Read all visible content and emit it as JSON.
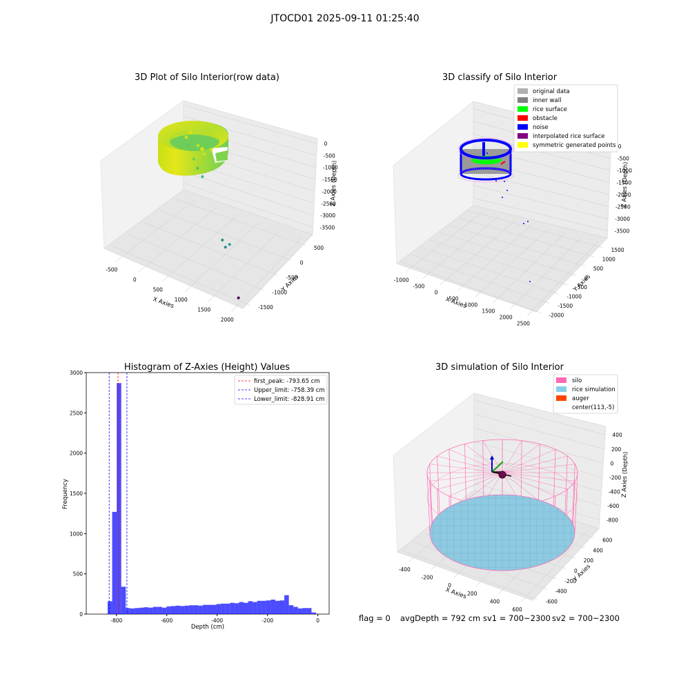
{
  "suptitle": "JTOCD01 2025-09-11 01:25:40",
  "footer": {
    "flag": "flag = 0",
    "avg": "avgDepth = 792 cm",
    "sv1": "sv1 = 700~2300",
    "sv2": "sv2 = 700~2300"
  },
  "chart_data": [
    {
      "type": "scatter",
      "projection": "3d",
      "title": "3D Plot of Silo Interior(row data)",
      "xlabel": "X Axies",
      "ylabel": "Y Axies",
      "zlabel": "Z Axies (Depth)",
      "x_ticks": [
        "-500",
        "0",
        "500",
        "1000",
        "1500",
        "2000"
      ],
      "y_ticks": [
        "-1500",
        "-1000",
        "-500",
        "0",
        "500"
      ],
      "z_ticks": [
        "0",
        "-500",
        "-1000",
        "-1500",
        "-2000",
        "-2500",
        "-3000",
        "-3500"
      ],
      "xlim": [
        -600,
        2300
      ],
      "ylim": [
        -1600,
        700
      ],
      "zlim": [
        -3700,
        100
      ],
      "colormap": "viridis",
      "points": [
        {
          "x": 0,
          "y": 0,
          "z": -780
        },
        {
          "x": 120,
          "y": 0,
          "z": -1200
        },
        {
          "x": 200,
          "y": 0,
          "z": -1500
        },
        {
          "x": 300,
          "y": 0,
          "z": -1750
        },
        {
          "x": 1150,
          "y": -600,
          "z": -2950
        },
        {
          "x": 1300,
          "y": -600,
          "z": -3000
        },
        {
          "x": 1250,
          "y": -650,
          "z": -3100
        },
        {
          "x": 2100,
          "y": -1450,
          "z": -3600
        }
      ],
      "grid": true
    },
    {
      "type": "scatter",
      "projection": "3d",
      "title": "3D classify of Silo Interior",
      "zlabel": "Z Axies (Depth)",
      "xlabel": "X Axies",
      "ylabel": "Y Axies",
      "x_ticks": [
        "-1000",
        "-500",
        "0",
        "500",
        "1000",
        "1500",
        "2000",
        "2500"
      ],
      "y_ticks": [
        "-2000",
        "-1500",
        "-1000",
        "-500",
        "0",
        "500",
        "1000",
        "1500"
      ],
      "z_ticks": [
        "0",
        "-500",
        "-1000",
        "-1500",
        "-2000",
        "-2500",
        "-3000",
        "-3500"
      ],
      "xlim": [
        -1100,
        2800
      ],
      "ylim": [
        -2100,
        1600
      ],
      "zlim": [
        -3600,
        200
      ],
      "legend": {
        "placement": "upper right",
        "entries": [
          {
            "label": "original data",
            "color": "#b0b0b0"
          },
          {
            "label": "inner wall",
            "color": "#808080"
          },
          {
            "label": "rice surface",
            "color": "#00ff00"
          },
          {
            "label": "obstacle",
            "color": "#ff0000"
          },
          {
            "label": "noise",
            "color": "#0000ff"
          },
          {
            "label": "interpolated rice surface",
            "color": "#800080"
          },
          {
            "label": "symmetric generated points",
            "color": "#ffff00"
          }
        ]
      },
      "grid": true
    },
    {
      "type": "histogram",
      "title": "Histogram of Z-Axies (Height) Values",
      "xlabel": "Depth (cm)",
      "ylabel": "Frequency",
      "xlim": [
        -920,
        45
      ],
      "ylim": [
        0,
        3000
      ],
      "x_ticks": [
        -800,
        -600,
        -400,
        -200,
        0
      ],
      "y_ticks": [
        0,
        500,
        1000,
        1500,
        2000,
        2500,
        3000
      ],
      "bar_color": "#0000ff",
      "bins": [
        {
          "x0": -835,
          "x1": -817,
          "count": 160
        },
        {
          "x0": -817,
          "x1": -799,
          "count": 1270
        },
        {
          "x0": -799,
          "x1": -781,
          "count": 2870
        },
        {
          "x0": -781,
          "x1": -763,
          "count": 340
        },
        {
          "x0": -763,
          "x1": -745,
          "count": 75
        },
        {
          "x0": -745,
          "x1": -727,
          "count": 70
        },
        {
          "x0": -727,
          "x1": -709,
          "count": 75
        },
        {
          "x0": -709,
          "x1": -691,
          "count": 80
        },
        {
          "x0": -691,
          "x1": -673,
          "count": 85
        },
        {
          "x0": -673,
          "x1": -655,
          "count": 80
        },
        {
          "x0": -655,
          "x1": -637,
          "count": 90
        },
        {
          "x0": -637,
          "x1": -619,
          "count": 90
        },
        {
          "x0": -619,
          "x1": -601,
          "count": 80
        },
        {
          "x0": -601,
          "x1": -583,
          "count": 95
        },
        {
          "x0": -583,
          "x1": -565,
          "count": 100
        },
        {
          "x0": -565,
          "x1": -547,
          "count": 105
        },
        {
          "x0": -547,
          "x1": -529,
          "count": 100
        },
        {
          "x0": -529,
          "x1": -511,
          "count": 105
        },
        {
          "x0": -511,
          "x1": -493,
          "count": 110
        },
        {
          "x0": -493,
          "x1": -475,
          "count": 110
        },
        {
          "x0": -475,
          "x1": -457,
          "count": 105
        },
        {
          "x0": -457,
          "x1": -439,
          "count": 115
        },
        {
          "x0": -439,
          "x1": -421,
          "count": 115
        },
        {
          "x0": -421,
          "x1": -403,
          "count": 115
        },
        {
          "x0": -403,
          "x1": -385,
          "count": 125
        },
        {
          "x0": -385,
          "x1": -367,
          "count": 130
        },
        {
          "x0": -367,
          "x1": -349,
          "count": 130
        },
        {
          "x0": -349,
          "x1": -331,
          "count": 140
        },
        {
          "x0": -331,
          "x1": -313,
          "count": 135
        },
        {
          "x0": -313,
          "x1": -295,
          "count": 150
        },
        {
          "x0": -295,
          "x1": -277,
          "count": 140
        },
        {
          "x0": -277,
          "x1": -259,
          "count": 160
        },
        {
          "x0": -259,
          "x1": -241,
          "count": 150
        },
        {
          "x0": -241,
          "x1": -223,
          "count": 165
        },
        {
          "x0": -223,
          "x1": -205,
          "count": 165
        },
        {
          "x0": -205,
          "x1": -187,
          "count": 170
        },
        {
          "x0": -187,
          "x1": -169,
          "count": 180
        },
        {
          "x0": -169,
          "x1": -151,
          "count": 165
        },
        {
          "x0": -151,
          "x1": -133,
          "count": 170
        },
        {
          "x0": -133,
          "x1": -115,
          "count": 235
        },
        {
          "x0": -115,
          "x1": -97,
          "count": 110
        },
        {
          "x0": -97,
          "x1": -79,
          "count": 90
        },
        {
          "x0": -79,
          "x1": -61,
          "count": 70
        },
        {
          "x0": -61,
          "x1": -43,
          "count": 75
        },
        {
          "x0": -43,
          "x1": -25,
          "count": 75
        },
        {
          "x0": -25,
          "x1": -7,
          "count": 20
        }
      ],
      "lines": [
        {
          "label": "first_peak: -793.65 cm",
          "x": -793.65,
          "color": "#ff0000"
        },
        {
          "label": "Upper_limit: -758.39 cm",
          "x": -758.39,
          "color": "#0000ff"
        },
        {
          "label": "Lower_limit: -828.91 cm",
          "x": -828.91,
          "color": "#0000ff"
        }
      ],
      "legend": {
        "placement": "upper right"
      }
    },
    {
      "type": "surface",
      "projection": "3d",
      "title": "3D simulation of Silo Interior",
      "xlabel": "X Axies",
      "ylabel": "Y Axies",
      "zlabel": "Z Axies (Depth)",
      "x_ticks": [
        "-400",
        "-200",
        "0",
        "200",
        "400",
        "600"
      ],
      "y_ticks": [
        "-600",
        "-400",
        "-200",
        "0",
        "200",
        "400",
        "600"
      ],
      "z_ticks": [
        "400",
        "200",
        "0",
        "-200",
        "-400",
        "-600",
        "-800"
      ],
      "xlim": [
        -500,
        750
      ],
      "ylim": [
        -700,
        700
      ],
      "zlim": [
        -900,
        450
      ],
      "legend": {
        "placement": "upper right",
        "entries": [
          {
            "label": "silo",
            "color": "#ff69b4"
          },
          {
            "label": "rice simulation",
            "color": "#87ceeb"
          },
          {
            "label": "auger",
            "color": "#ff4500"
          },
          {
            "label": "center(113,-5)",
            "color": "#ffffff"
          }
        ]
      },
      "grid": true
    }
  ]
}
